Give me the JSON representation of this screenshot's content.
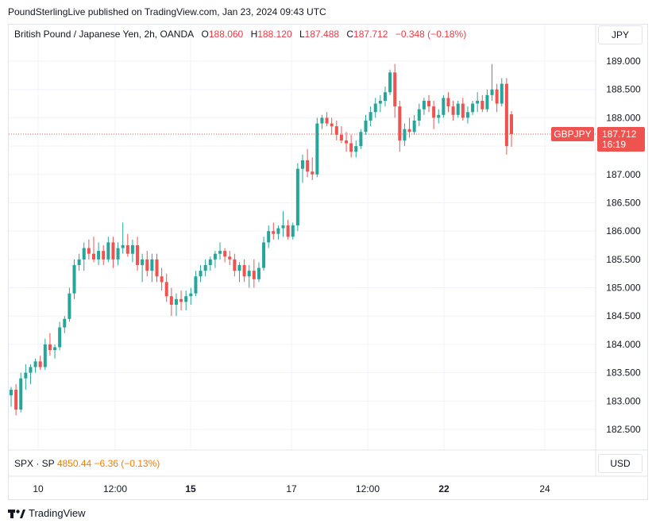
{
  "header": {
    "text": "PoundSterlingLive published on TradingView.com, Jan 23, 2024 09:43 UTC"
  },
  "legend": {
    "symbol": "British Pound / Japanese Yen, 2h, OANDA",
    "open_label": "O",
    "open": "188.060",
    "high_label": "H",
    "high": "188.120",
    "low_label": "L",
    "low": "187.488",
    "close_label": "C",
    "close": "187.712",
    "change": "−0.348 (−0.18%)"
  },
  "currency_top": "JPY",
  "currency_bottom": "USD",
  "price_tag": {
    "symbol": "GBPJPY",
    "price": "187.712",
    "countdown": "16:19"
  },
  "sub_legend": {
    "symbol": "SPX · SP",
    "value": "4850.44",
    "change": "−6.36 (−0.13%)"
  },
  "footer": {
    "brand": "TradingView",
    "logo_icon": "tradingview-logo-icon"
  },
  "colors": {
    "up": "#26a69a",
    "down": "#ef5350",
    "grid": "#f0f3fa",
    "tag": "#ef5350"
  },
  "chart_data": {
    "type": "candlestick",
    "y_ticks": [
      "189.000",
      "188.500",
      "188.000",
      "187.500",
      "187.000",
      "186.500",
      "186.000",
      "185.500",
      "185.000",
      "184.500",
      "184.000",
      "183.500",
      "183.000",
      "182.500"
    ],
    "ylim": [
      182.2,
      189.4
    ],
    "x_ticks": [
      "10",
      "12:00",
      "15",
      "17",
      "12:00",
      "22",
      "24"
    ],
    "x_ticks_bold": [
      false,
      false,
      true,
      false,
      false,
      true,
      false
    ],
    "last_price": 187.712,
    "candles": [
      [
        183.1,
        183.25,
        182.9,
        183.2
      ],
      [
        183.2,
        183.3,
        182.75,
        182.85
      ],
      [
        182.85,
        183.5,
        182.8,
        183.4
      ],
      [
        183.4,
        183.65,
        183.2,
        183.5
      ],
      [
        183.5,
        183.65,
        183.3,
        183.6
      ],
      [
        183.6,
        183.75,
        183.5,
        183.7
      ],
      [
        183.7,
        183.8,
        183.55,
        183.6
      ],
      [
        183.6,
        184.1,
        183.55,
        184.0
      ],
      [
        184.0,
        184.2,
        183.8,
        183.9
      ],
      [
        183.9,
        184.0,
        183.75,
        183.95
      ],
      [
        183.95,
        184.4,
        183.9,
        184.3
      ],
      [
        184.3,
        184.5,
        184.2,
        184.45
      ],
      [
        184.45,
        185.0,
        184.4,
        184.9
      ],
      [
        184.9,
        185.5,
        184.8,
        185.4
      ],
      [
        185.4,
        185.6,
        185.3,
        185.5
      ],
      [
        185.5,
        185.8,
        185.3,
        185.7
      ],
      [
        185.7,
        185.85,
        185.5,
        185.6
      ],
      [
        185.6,
        185.9,
        185.45,
        185.5
      ],
      [
        185.5,
        185.8,
        185.4,
        185.65
      ],
      [
        185.65,
        185.75,
        185.4,
        185.5
      ],
      [
        185.5,
        185.9,
        185.45,
        185.8
      ],
      [
        185.8,
        185.9,
        185.35,
        185.5
      ],
      [
        185.5,
        185.8,
        185.4,
        185.7
      ],
      [
        185.7,
        186.15,
        185.6,
        185.75
      ],
      [
        185.75,
        185.95,
        185.55,
        185.6
      ],
      [
        185.6,
        185.85,
        185.45,
        185.75
      ],
      [
        185.75,
        185.9,
        185.3,
        185.4
      ],
      [
        185.4,
        185.6,
        185.1,
        185.5
      ],
      [
        185.5,
        185.65,
        185.2,
        185.3
      ],
      [
        185.3,
        185.6,
        185.1,
        185.5
      ],
      [
        185.5,
        185.6,
        185.1,
        185.2
      ],
      [
        185.2,
        185.35,
        184.95,
        185.1
      ],
      [
        185.1,
        185.25,
        184.75,
        184.85
      ],
      [
        184.85,
        185.0,
        184.5,
        184.7
      ],
      [
        184.7,
        184.9,
        184.5,
        184.8
      ],
      [
        184.8,
        184.95,
        184.6,
        184.75
      ],
      [
        184.75,
        184.95,
        184.6,
        184.85
      ],
      [
        184.85,
        185.0,
        184.7,
        184.9
      ],
      [
        184.9,
        185.3,
        184.85,
        185.2
      ],
      [
        185.2,
        185.4,
        185.1,
        185.3
      ],
      [
        185.3,
        185.5,
        185.2,
        185.4
      ],
      [
        185.4,
        185.55,
        185.3,
        185.5
      ],
      [
        185.5,
        185.65,
        185.35,
        185.6
      ],
      [
        185.6,
        185.8,
        185.5,
        185.65
      ],
      [
        185.65,
        185.7,
        185.45,
        185.55
      ],
      [
        185.55,
        185.65,
        185.4,
        185.5
      ],
      [
        185.5,
        185.6,
        185.2,
        185.3
      ],
      [
        185.3,
        185.45,
        185.1,
        185.4
      ],
      [
        185.4,
        185.5,
        185.1,
        185.2
      ],
      [
        185.2,
        185.4,
        185.0,
        185.3
      ],
      [
        185.3,
        185.5,
        185.0,
        185.15
      ],
      [
        185.15,
        185.45,
        185.1,
        185.35
      ],
      [
        185.35,
        185.9,
        185.3,
        185.8
      ],
      [
        185.8,
        186.1,
        185.7,
        186.0
      ],
      [
        186.0,
        186.15,
        185.85,
        185.95
      ],
      [
        185.95,
        186.1,
        185.85,
        186.05
      ],
      [
        186.05,
        186.35,
        185.9,
        186.1
      ],
      [
        186.1,
        186.2,
        185.85,
        185.9
      ],
      [
        185.9,
        186.15,
        185.85,
        186.1
      ],
      [
        186.1,
        187.2,
        186.0,
        187.1
      ],
      [
        187.1,
        187.35,
        186.85,
        187.25
      ],
      [
        187.25,
        187.45,
        186.95,
        187.05
      ],
      [
        187.05,
        187.3,
        186.9,
        187.0
      ],
      [
        187.0,
        188.0,
        186.95,
        187.9
      ],
      [
        187.9,
        188.05,
        187.8,
        188.0
      ],
      [
        188.0,
        188.1,
        187.85,
        187.9
      ],
      [
        187.9,
        188.0,
        187.7,
        187.85
      ],
      [
        187.85,
        187.95,
        187.6,
        187.7
      ],
      [
        187.7,
        187.85,
        187.55,
        187.6
      ],
      [
        187.6,
        187.75,
        187.4,
        187.55
      ],
      [
        187.55,
        187.7,
        187.3,
        187.4
      ],
      [
        187.4,
        187.6,
        187.3,
        187.5
      ],
      [
        187.5,
        187.8,
        187.45,
        187.75
      ],
      [
        187.75,
        188.05,
        187.7,
        187.95
      ],
      [
        187.95,
        188.2,
        187.85,
        188.1
      ],
      [
        188.1,
        188.35,
        188.0,
        188.25
      ],
      [
        188.25,
        188.4,
        188.1,
        188.3
      ],
      [
        188.3,
        188.55,
        188.2,
        188.45
      ],
      [
        188.45,
        188.85,
        188.4,
        188.8
      ],
      [
        188.8,
        188.95,
        188.0,
        188.2
      ],
      [
        188.2,
        188.3,
        187.4,
        187.6
      ],
      [
        187.6,
        187.9,
        187.5,
        187.8
      ],
      [
        187.8,
        188.0,
        187.65,
        187.75
      ],
      [
        187.75,
        188.05,
        187.7,
        187.95
      ],
      [
        187.95,
        188.25,
        187.85,
        188.15
      ],
      [
        188.15,
        188.35,
        188.05,
        188.3
      ],
      [
        188.3,
        188.4,
        188.1,
        188.2
      ],
      [
        188.2,
        188.3,
        187.8,
        188.0
      ],
      [
        188.0,
        188.15,
        187.9,
        188.05
      ],
      [
        188.05,
        188.4,
        188.0,
        188.35
      ],
      [
        188.35,
        188.45,
        188.1,
        188.2
      ],
      [
        188.2,
        188.3,
        187.95,
        188.05
      ],
      [
        188.05,
        188.3,
        188.0,
        188.25
      ],
      [
        188.25,
        188.35,
        187.95,
        188.0
      ],
      [
        188.0,
        188.2,
        187.9,
        188.1
      ],
      [
        188.1,
        188.3,
        188.05,
        188.25
      ],
      [
        188.25,
        188.45,
        188.1,
        188.3
      ],
      [
        188.3,
        188.4,
        188.1,
        188.15
      ],
      [
        188.15,
        188.5,
        188.1,
        188.4
      ],
      [
        188.4,
        188.95,
        188.3,
        188.5
      ],
      [
        188.5,
        188.6,
        188.1,
        188.25
      ],
      [
        188.25,
        188.7,
        188.2,
        188.6
      ],
      [
        188.6,
        188.7,
        187.35,
        187.5
      ],
      [
        188.06,
        188.12,
        187.488,
        187.712
      ]
    ]
  }
}
